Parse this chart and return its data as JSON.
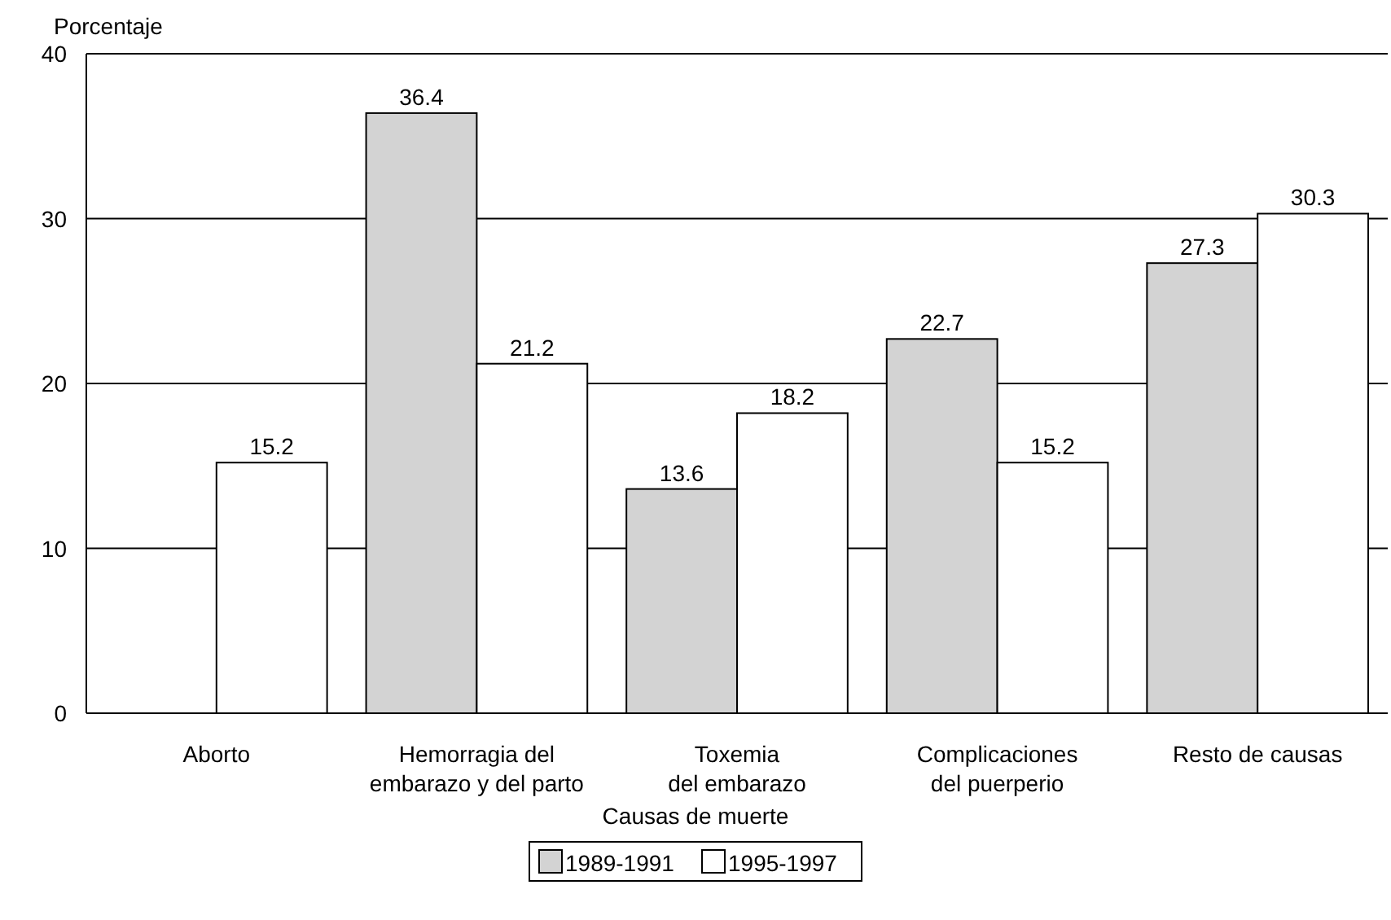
{
  "chart_data": {
    "type": "bar",
    "xlabel": "Causas de muerte",
    "ylabel": "Porcentaje",
    "categories": [
      "Aborto",
      "Hemorragia del\nembarazo y del parto",
      "Toxemia\ndel embarazo",
      "Complicaciones\ndel puerperio",
      "Resto de causas"
    ],
    "series": [
      {
        "name": "1989-1991",
        "color": "#d3d3d3",
        "values": [
          null,
          36.4,
          13.6,
          22.7,
          27.3
        ]
      },
      {
        "name": "1995-1997",
        "color": "#ffffff",
        "values": [
          15.2,
          21.2,
          18.2,
          15.2,
          30.3
        ]
      }
    ],
    "ylim": [
      0,
      40
    ],
    "yticks": [
      0,
      10,
      20,
      30,
      40
    ],
    "grid": "y",
    "data_labels": true,
    "legend": "bottom"
  }
}
